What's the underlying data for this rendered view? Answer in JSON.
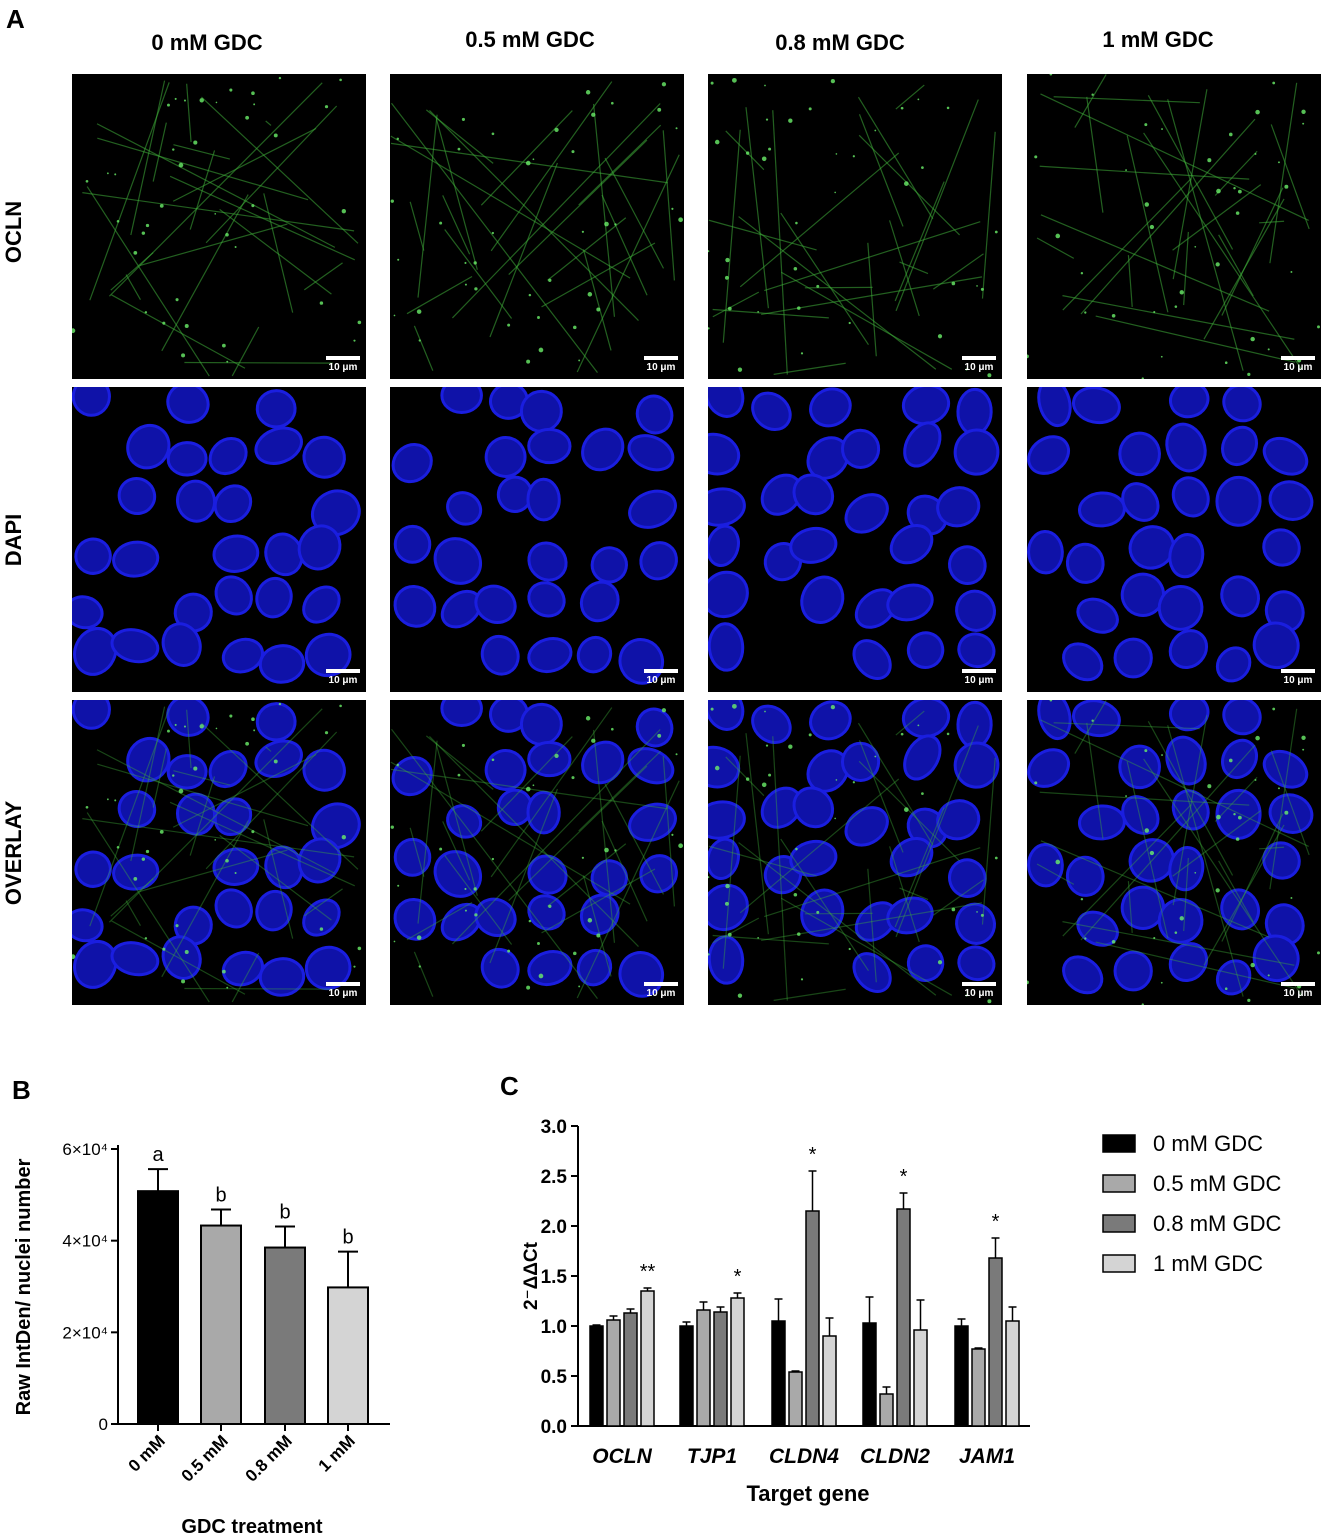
{
  "panel_a": {
    "letter": "A",
    "columns": [
      "0 mM GDC",
      "0.5 mM GDC",
      "0.8 mM GDC",
      "1 mM GDC"
    ],
    "rows": [
      "OCLN",
      "DAPI",
      "OVERLAY"
    ],
    "scale_label": "10 μm",
    "colors": {
      "ocln": "#3fae3a",
      "dapi": "#1a1ee0",
      "background": "#000000"
    }
  },
  "chart_data": [
    {
      "panel": "B",
      "type": "bar",
      "categories": [
        "0 mM",
        "0.5 mM",
        "0.8 mM",
        "1 mM"
      ],
      "values": [
        50800,
        43300,
        38500,
        29800
      ],
      "errors": [
        4800,
        3500,
        4600,
        7800
      ],
      "letters": [
        "a",
        "b",
        "b",
        "b"
      ],
      "colors": [
        "#000000",
        "#a9a9a9",
        "#7a7a7a",
        "#d4d4d4"
      ],
      "xlabel": "GDC treatment",
      "ylabel": "Raw IntDen/ nuclei number",
      "ylim": [
        0,
        60000
      ],
      "yticks": [
        {
          "value": 0,
          "label": "0"
        },
        {
          "value": 20000,
          "label": "2×10⁴"
        },
        {
          "value": 40000,
          "label": "4×10⁴"
        },
        {
          "value": 60000,
          "label": "6×10⁴"
        }
      ]
    },
    {
      "panel": "C",
      "type": "bar",
      "categories": [
        "OCLN",
        "TJP1",
        "CLDN4",
        "CLDN2",
        "JAM1"
      ],
      "series": [
        {
          "name": "0 mM GDC",
          "color": "#000000",
          "values": [
            1.0,
            1.0,
            1.05,
            1.03,
            1.0
          ],
          "errors": [
            0.01,
            0.04,
            0.22,
            0.26,
            0.07
          ]
        },
        {
          "name": "0.5 mM GDC",
          "color": "#a9a9a9",
          "values": [
            1.06,
            1.16,
            0.54,
            0.32,
            0.77
          ],
          "errors": [
            0.04,
            0.08,
            0.01,
            0.07,
            0.01
          ]
        },
        {
          "name": "0.8 mM GDC",
          "color": "#7a7a7a",
          "values": [
            1.13,
            1.14,
            2.15,
            2.17,
            1.68
          ],
          "errors": [
            0.04,
            0.05,
            0.4,
            0.16,
            0.2
          ]
        },
        {
          "name": "1 mM GDC",
          "color": "#d4d4d4",
          "values": [
            1.35,
            1.28,
            0.9,
            0.96,
            1.05
          ],
          "errors": [
            0.03,
            0.05,
            0.18,
            0.3,
            0.14
          ]
        }
      ],
      "significance": [
        "**",
        "*",
        "*",
        "*",
        "*"
      ],
      "xlabel": "Target gene",
      "ylabel": "2⁻ΔΔCt",
      "ylim": [
        0,
        3.0
      ],
      "yticks": [
        "0.0",
        "0.5",
        "1.0",
        "1.5",
        "2.0",
        "2.5",
        "3.0"
      ]
    }
  ]
}
